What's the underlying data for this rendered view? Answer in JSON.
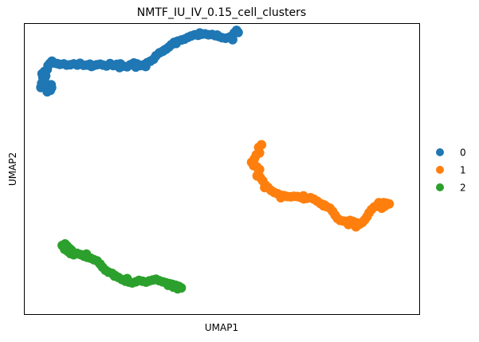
{
  "chart_data": {
    "type": "scatter",
    "title": "NMTF_IU_IV_0.15_cell_clusters",
    "xlabel": "UMAP1",
    "ylabel": "UMAP2",
    "xlim": [
      0,
      100
    ],
    "ylim": [
      0,
      100
    ],
    "grid": false,
    "legend_position": "right",
    "series": [
      {
        "name": "0",
        "color": "#1f77b4",
        "points": [
          [
            4.5,
            79.3
          ],
          [
            5.5,
            78.3
          ],
          [
            6.4,
            78.0
          ],
          [
            7.0,
            77.8
          ],
          [
            5.2,
            80.6
          ],
          [
            4.3,
            77.9
          ],
          [
            6.7,
            76.9
          ],
          [
            5.9,
            76.4
          ],
          [
            4.8,
            81.3
          ],
          [
            5.5,
            81.9
          ],
          [
            4.6,
            82.6
          ],
          [
            5.2,
            83.4
          ],
          [
            5.9,
            84.1
          ],
          [
            6.1,
            85.4
          ],
          [
            6.6,
            86.2
          ],
          [
            7.1,
            86.9
          ],
          [
            7.6,
            86.3
          ],
          [
            8.4,
            86.1
          ],
          [
            9.1,
            85.8
          ],
          [
            10.1,
            86.0
          ],
          [
            10.8,
            85.6
          ],
          [
            11.7,
            85.7
          ],
          [
            12.6,
            86.0
          ],
          [
            13.5,
            85.6
          ],
          [
            14.2,
            86.2
          ],
          [
            15.1,
            85.5
          ],
          [
            15.9,
            85.6
          ],
          [
            16.7,
            85.9
          ],
          [
            17.6,
            85.4
          ],
          [
            18.4,
            85.7
          ],
          [
            19.3,
            85.9
          ],
          [
            20.0,
            85.6
          ],
          [
            20.9,
            85.3
          ],
          [
            21.8,
            86.1
          ],
          [
            22.6,
            85.4
          ],
          [
            23.5,
            85.8
          ],
          [
            24.4,
            86.0
          ],
          [
            25.2,
            85.2
          ],
          [
            26.1,
            85.0
          ],
          [
            26.9,
            85.7
          ],
          [
            27.8,
            86.3
          ],
          [
            28.6,
            86.0
          ],
          [
            29.5,
            85.4
          ],
          [
            30.3,
            85.7
          ],
          [
            31.2,
            86.4
          ],
          [
            32.0,
            86.9
          ],
          [
            32.8,
            87.6
          ],
          [
            33.4,
            88.8
          ],
          [
            34.3,
            89.8
          ],
          [
            35.1,
            90.3
          ],
          [
            36.0,
            91.1
          ],
          [
            36.7,
            91.8
          ],
          [
            37.3,
            92.6
          ],
          [
            38.0,
            93.4
          ],
          [
            38.9,
            93.8
          ],
          [
            39.8,
            94.2
          ],
          [
            40.6,
            94.5
          ],
          [
            41.5,
            95.1
          ],
          [
            42.3,
            95.6
          ],
          [
            43.2,
            96.0
          ],
          [
            44.1,
            95.8
          ],
          [
            45.0,
            96.2
          ],
          [
            45.8,
            96.3
          ],
          [
            46.7,
            96.0
          ],
          [
            47.6,
            96.1
          ],
          [
            48.4,
            95.7
          ],
          [
            49.3,
            95.4
          ],
          [
            50.1,
            95.0
          ],
          [
            51.0,
            94.8
          ],
          [
            51.9,
            95.1
          ],
          [
            52.6,
            95.6
          ],
          [
            53.2,
            96.6
          ],
          [
            53.8,
            97.5
          ],
          [
            54.2,
            96.8
          ],
          [
            52.8,
            94.3
          ],
          [
            30.8,
            85.1
          ],
          [
            28.3,
            84.9
          ],
          [
            17.1,
            85.1
          ],
          [
            24.2,
            84.7
          ],
          [
            35.6,
            90.8
          ],
          [
            38.5,
            93.0
          ],
          [
            44.5,
            96.6
          ],
          [
            48.9,
            95.9
          ],
          [
            6.9,
            78.8
          ],
          [
            5.0,
            78.9
          ]
        ]
      },
      {
        "name": "1",
        "color": "#ff7f0e",
        "points": [
          [
            59.4,
            57.3
          ],
          [
            60.1,
            58.2
          ],
          [
            59.6,
            55.4
          ],
          [
            58.8,
            54.7
          ],
          [
            58.3,
            53.4
          ],
          [
            57.6,
            52.2
          ],
          [
            58.1,
            51.0
          ],
          [
            58.9,
            50.6
          ],
          [
            59.6,
            49.7
          ],
          [
            59.3,
            48.2
          ],
          [
            59.8,
            46.9
          ],
          [
            60.4,
            45.8
          ],
          [
            61.0,
            44.4
          ],
          [
            61.7,
            43.6
          ],
          [
            62.5,
            42.5
          ],
          [
            63.3,
            41.8
          ],
          [
            64.1,
            41.4
          ],
          [
            64.9,
            40.9
          ],
          [
            65.8,
            40.7
          ],
          [
            66.6,
            40.4
          ],
          [
            67.5,
            40.3
          ],
          [
            68.3,
            40.5
          ],
          [
            69.2,
            40.4
          ],
          [
            70.0,
            40.1
          ],
          [
            70.8,
            39.6
          ],
          [
            71.6,
            39.8
          ],
          [
            72.5,
            40.0
          ],
          [
            73.3,
            39.5
          ],
          [
            74.2,
            38.8
          ],
          [
            75.0,
            38.0
          ],
          [
            75.8,
            37.2
          ],
          [
            76.6,
            36.9
          ],
          [
            77.4,
            36.4
          ],
          [
            78.1,
            35.3
          ],
          [
            78.7,
            34.0
          ],
          [
            79.3,
            32.9
          ],
          [
            80.0,
            32.2
          ],
          [
            80.8,
            32.0
          ],
          [
            81.6,
            31.9
          ],
          [
            82.5,
            32.2
          ],
          [
            83.3,
            31.8
          ],
          [
            84.1,
            31.4
          ],
          [
            84.9,
            30.9
          ],
          [
            85.6,
            31.5
          ],
          [
            86.2,
            32.4
          ],
          [
            86.8,
            33.5
          ],
          [
            87.3,
            34.8
          ],
          [
            87.9,
            35.9
          ],
          [
            88.6,
            36.8
          ],
          [
            89.4,
            37.5
          ],
          [
            90.2,
            37.9
          ],
          [
            91.0,
            38.3
          ],
          [
            91.7,
            38.1
          ],
          [
            92.4,
            37.9
          ],
          [
            91.3,
            37.1
          ],
          [
            90.5,
            36.4
          ],
          [
            89.8,
            38.3
          ],
          [
            84.0,
            30.0
          ],
          [
            82.1,
            30.8
          ],
          [
            65.0,
            40.0
          ],
          [
            76.0,
            37.5
          ],
          [
            59.0,
            47.5
          ],
          [
            60.9,
            43.5
          ],
          [
            70.7,
            40.6
          ]
        ]
      },
      {
        "name": "2",
        "color": "#2ca02c",
        "points": [
          [
            9.7,
            23.6
          ],
          [
            10.4,
            24.1
          ],
          [
            10.9,
            23.4
          ],
          [
            11.5,
            22.6
          ],
          [
            12.0,
            22.0
          ],
          [
            11.1,
            21.6
          ],
          [
            10.3,
            22.3
          ],
          [
            11.8,
            20.8
          ],
          [
            12.6,
            20.4
          ],
          [
            13.4,
            20.9
          ],
          [
            14.3,
            20.5
          ],
          [
            15.2,
            19.9
          ],
          [
            16.0,
            19.5
          ],
          [
            16.9,
            19.2
          ],
          [
            17.7,
            18.7
          ],
          [
            18.5,
            18.3
          ],
          [
            19.3,
            17.2
          ],
          [
            19.9,
            16.1
          ],
          [
            20.6,
            15.1
          ],
          [
            21.4,
            14.4
          ],
          [
            22.3,
            14.0
          ],
          [
            23.1,
            13.2
          ],
          [
            23.9,
            12.6
          ],
          [
            24.8,
            11.9
          ],
          [
            25.7,
            11.3
          ],
          [
            26.6,
            11.0
          ],
          [
            27.4,
            10.7
          ],
          [
            28.3,
            11.1
          ],
          [
            29.1,
            11.6
          ],
          [
            30.0,
            11.3
          ],
          [
            30.9,
            11.0
          ],
          [
            31.7,
            11.4
          ],
          [
            32.6,
            11.7
          ],
          [
            33.4,
            12.0
          ],
          [
            34.2,
            11.5
          ],
          [
            35.1,
            11.1
          ],
          [
            35.9,
            10.8
          ],
          [
            36.8,
            10.5
          ],
          [
            37.6,
            10.2
          ],
          [
            38.4,
            9.9
          ],
          [
            39.2,
            9.5
          ],
          [
            39.8,
            9.0
          ],
          [
            38.9,
            8.7
          ],
          [
            37.8,
            9.3
          ],
          [
            36.5,
            9.9
          ],
          [
            26.1,
            12.2
          ],
          [
            22.9,
            13.1
          ],
          [
            15.8,
            20.6
          ]
        ]
      }
    ]
  }
}
